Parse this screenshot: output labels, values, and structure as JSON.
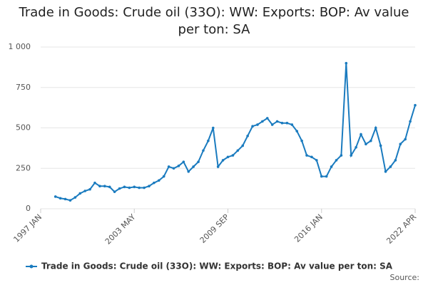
{
  "chart_data": {
    "type": "line",
    "title": "Trade in Goods: Crude oil (33O): WW: Exports: BOP: Av value per ton: SA",
    "source": "Source:",
    "categories": [
      "1997 JAN",
      null,
      null,
      null,
      null,
      null,
      null,
      null,
      null,
      null,
      null,
      null,
      null,
      null,
      null,
      null,
      null,
      null,
      null,
      "2003 MAY",
      null,
      null,
      null,
      null,
      null,
      null,
      null,
      null,
      null,
      null,
      null,
      null,
      null,
      null,
      null,
      null,
      null,
      null,
      "2009 SEP",
      null,
      null,
      null,
      null,
      null,
      null,
      null,
      null,
      null,
      null,
      null,
      null,
      null,
      null,
      null,
      null,
      null,
      null,
      "2016 JAN",
      null,
      null,
      null,
      null,
      null,
      null,
      null,
      null,
      null,
      null,
      null,
      null,
      null,
      null,
      null,
      null,
      null,
      null,
      "2022 APR"
    ],
    "series": [
      {
        "name": "Trade in Goods: Crude oil (33O): WW: Exports: BOP: Av value per ton: SA",
        "color": "#1a7bbf",
        "values": [
          null,
          null,
          null,
          75,
          65,
          60,
          52,
          70,
          95,
          110,
          120,
          160,
          140,
          140,
          135,
          105,
          125,
          135,
          130,
          135,
          130,
          130,
          140,
          160,
          175,
          200,
          260,
          250,
          265,
          290,
          230,
          260,
          290,
          360,
          420,
          500,
          260,
          300,
          320,
          330,
          360,
          390,
          450,
          510,
          520,
          540,
          560,
          520,
          540,
          530,
          530,
          520,
          480,
          420,
          330,
          320,
          300,
          200,
          200,
          260,
          300,
          330,
          900,
          330,
          380,
          460,
          400,
          420,
          500,
          390,
          230,
          260,
          300,
          400,
          430,
          540,
          640
        ]
      }
    ],
    "ylim": [
      0,
      1000
    ],
    "yticks": [
      0,
      250,
      500,
      750,
      {
        "value": 1000,
        "label": "1 000"
      }
    ],
    "grid": true
  }
}
